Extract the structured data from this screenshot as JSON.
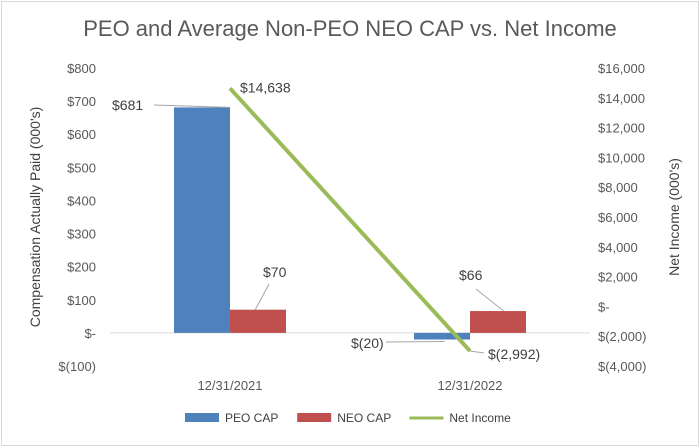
{
  "chart_data": {
    "type": "bar",
    "title": "PEO and Average Non-PEO NEO CAP vs. Net Income",
    "categories": [
      "12/31/2021",
      "12/31/2022"
    ],
    "ylabel": "Compensation Actually Paid (000's)",
    "y2label": "Net Income (000's)",
    "ylim": [
      -100,
      800
    ],
    "y2lim": [
      -4000,
      16000
    ],
    "yticks": [
      800,
      700,
      600,
      500,
      400,
      300,
      200,
      100,
      0,
      -100
    ],
    "ytick_labels": [
      "$800",
      "$700",
      "$600",
      "$500",
      "$400",
      "$300",
      "$200",
      "$100",
      "$-",
      "$(100)"
    ],
    "y2ticks": [
      16000,
      14000,
      12000,
      10000,
      8000,
      6000,
      4000,
      2000,
      0,
      -2000,
      -4000
    ],
    "y2tick_labels": [
      "$16,000",
      "$14,000",
      "$12,000",
      "$10,000",
      "$8,000",
      "$6,000",
      "$4,000",
      "$2,000",
      "$-",
      "$(2,000)",
      "$(4,000)"
    ],
    "series": [
      {
        "name": "PEO CAP",
        "kind": "bar",
        "axis": "left",
        "color": "#4f81bd",
        "values": [
          681,
          -20
        ],
        "labels": [
          "$681",
          "$(20)"
        ]
      },
      {
        "name": "NEO CAP",
        "kind": "bar",
        "axis": "left",
        "color": "#c0504d",
        "values": [
          70,
          66
        ],
        "labels": [
          "$70",
          "$66"
        ]
      },
      {
        "name": "Net Income",
        "kind": "line",
        "axis": "right",
        "color": "#9bbb59",
        "values": [
          14638,
          -2992
        ],
        "labels": [
          "$14,638",
          "$(2,992)"
        ]
      }
    ],
    "legend": "bottom"
  }
}
